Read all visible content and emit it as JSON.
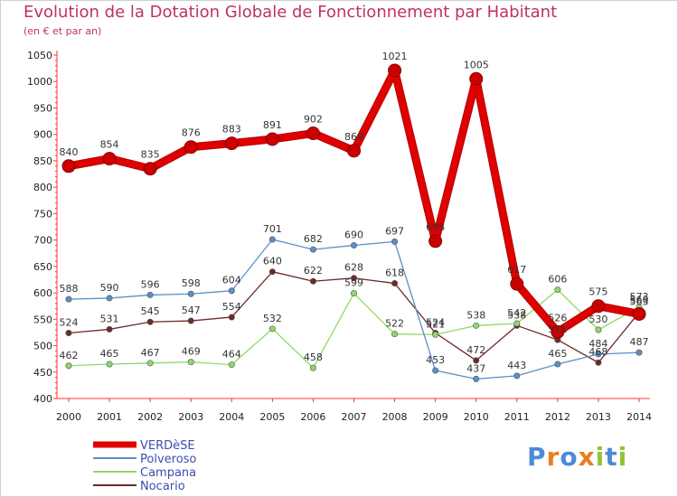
{
  "title": "Evolution de la Dotation Globale de Fonctionnement par Habitant",
  "subtitle": "(en € et par an)",
  "logo_text": "Proxiti",
  "chart_data": {
    "type": "line",
    "categories": [
      "2000",
      "2001",
      "2002",
      "2003",
      "2004",
      "2005",
      "2006",
      "2007",
      "2008",
      "2009",
      "2010",
      "2011",
      "2012",
      "2013",
      "2014"
    ],
    "ylim": [
      400,
      1050
    ],
    "yticks": [
      400,
      450,
      500,
      550,
      600,
      650,
      700,
      750,
      800,
      850,
      900,
      950,
      1000,
      1050
    ],
    "grid": false,
    "legend_position": "bottom-left",
    "series": [
      {
        "name": "VERDèSE",
        "color": "#e00000",
        "values": [
          840,
          854,
          835,
          876,
          883,
          891,
          902,
          869,
          1021,
          698,
          1005,
          617,
          526,
          575,
          560
        ],
        "labels": [
          "840",
          "854",
          "835",
          "876",
          "883",
          "891",
          "902",
          "869",
          "1021",
          "698",
          "1005",
          "617",
          "526",
          "575",
          "560"
        ]
      },
      {
        "name": "Polveroso",
        "color": "#5b8fc8",
        "values": [
          588,
          590,
          596,
          598,
          604,
          701,
          682,
          690,
          697,
          453,
          437,
          443,
          465,
          484,
          487
        ],
        "labels": [
          "588",
          "590",
          "596",
          "598",
          "604",
          "701",
          "682",
          "690",
          "697",
          "453",
          "437",
          "443",
          "465",
          "484",
          "487"
        ]
      },
      {
        "name": "Campana",
        "color": "#8fd86a",
        "values": [
          462,
          465,
          467,
          469,
          464,
          532,
          458,
          599,
          522,
          521,
          538,
          542,
          606,
          530,
          573
        ],
        "labels": [
          "462",
          "465",
          "467",
          "469",
          "464",
          "532",
          "458",
          "599",
          "522",
          "521",
          "538",
          "542",
          "606",
          "530",
          "573"
        ]
      },
      {
        "name": "Nocario",
        "color": "#6e2a2a",
        "values": [
          524,
          531,
          545,
          547,
          554,
          640,
          622,
          628,
          618,
          524,
          472,
          538,
          511,
          468,
          563
        ],
        "labels": [
          "524",
          "531",
          "545",
          "547",
          "554",
          "640",
          "622",
          "628",
          "618",
          "524",
          "472",
          "538",
          "511",
          "468",
          "563"
        ]
      }
    ]
  }
}
